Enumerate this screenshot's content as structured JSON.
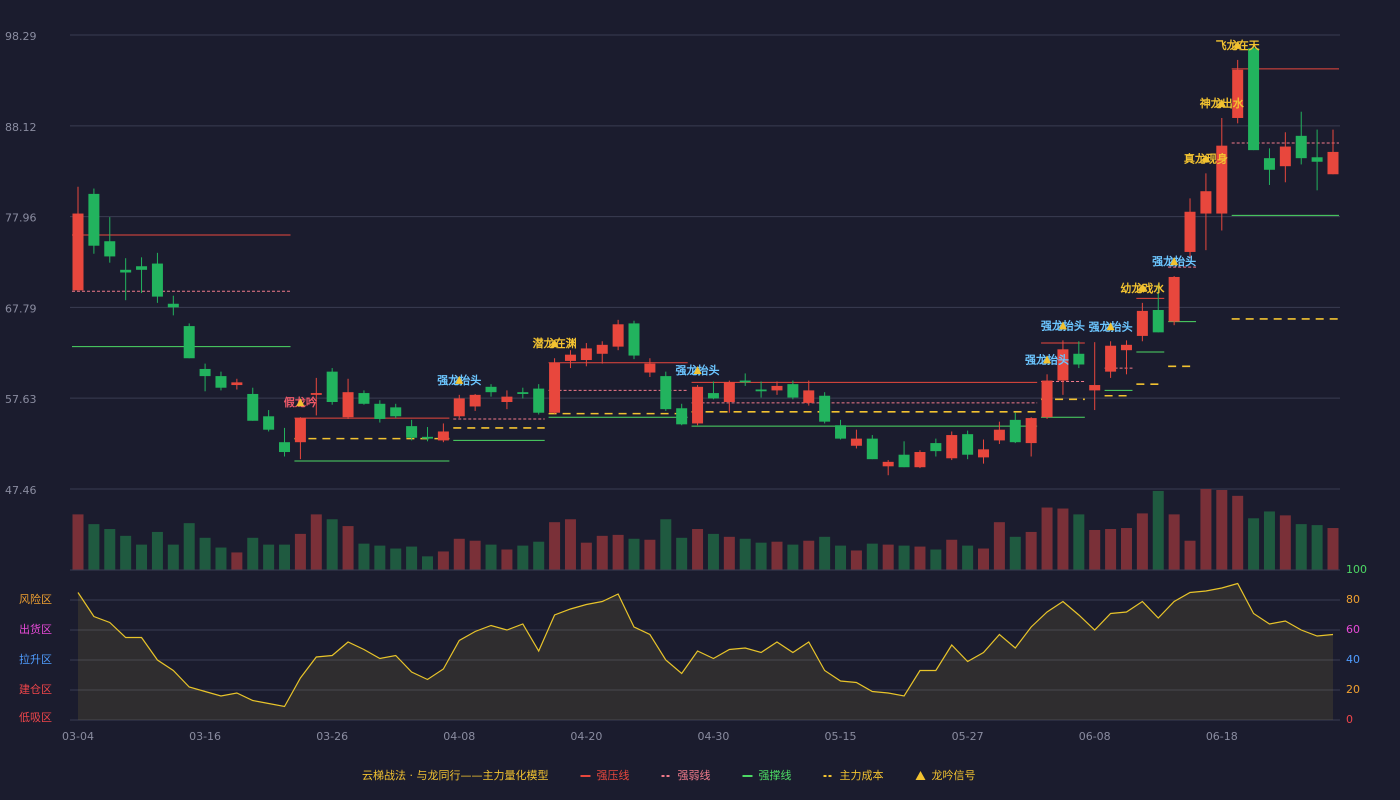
{
  "chart_data": [
    {
      "type": "candlestick",
      "categories": [
        "03-04",
        null,
        null,
        null,
        null,
        null,
        null,
        null,
        "03-16",
        null,
        null,
        null,
        null,
        null,
        null,
        null,
        "03-26",
        null,
        null,
        null,
        null,
        null,
        null,
        null,
        "04-08",
        null,
        null,
        null,
        null,
        null,
        null,
        null,
        "04-20",
        null,
        null,
        null,
        null,
        null,
        null,
        null,
        "04-30",
        null,
        null,
        null,
        null,
        null,
        null,
        null,
        "05-15",
        null,
        null,
        null,
        null,
        null,
        null,
        null,
        "05-27",
        null,
        null,
        null,
        null,
        null,
        null,
        null,
        "06-08",
        null,
        null,
        null,
        null,
        null,
        null,
        null,
        "06-18",
        null,
        null,
        null,
        null,
        null,
        null,
        null
      ],
      "open": [
        69.7,
        80.5,
        75.2,
        72.0,
        72.4,
        72.7,
        68.2,
        65.7,
        60.9,
        60.1,
        59.1,
        58.1,
        55.6,
        52.7,
        52.7,
        58.0,
        60.6,
        55.5,
        58.2,
        57.0,
        56.6,
        54.5,
        53.3,
        52.9,
        55.6,
        56.7,
        58.9,
        57.2,
        58.3,
        58.7,
        56.0,
        61.8,
        61.9,
        62.6,
        63.4,
        66.0,
        60.5,
        60.1,
        56.5,
        54.8,
        58.2,
        57.2,
        59.6,
        58.6,
        58.5,
        59.2,
        57.1,
        57.9,
        54.6,
        52.3,
        53.1,
        50.0,
        51.3,
        49.9,
        52.6,
        50.9,
        53.6,
        51.0,
        52.9,
        55.2,
        52.6,
        55.5,
        59.6,
        62.6,
        58.5,
        60.6,
        63.0,
        64.6,
        67.5,
        66.2,
        74.0,
        78.3,
        78.3,
        89.0,
        96.8,
        84.5,
        83.6,
        87.0,
        84.6,
        82.7
      ],
      "high": [
        81.3,
        81.1,
        77.9,
        73.3,
        73.4,
        73.9,
        69.1,
        66.0,
        61.5,
        60.6,
        59.8,
        58.8,
        56.3,
        54.3,
        55.5,
        59.9,
        61.0,
        59.8,
        58.5,
        57.4,
        57.0,
        55.2,
        54.4,
        54.8,
        58.0,
        58.1,
        59.2,
        58.5,
        58.8,
        59.2,
        62.1,
        63.0,
        63.8,
        64.0,
        66.4,
        66.3,
        62.1,
        60.6,
        57.0,
        59.1,
        59.5,
        59.6,
        60.4,
        59.5,
        59.5,
        59.6,
        59.6,
        58.3,
        55.2,
        54.1,
        53.5,
        50.7,
        52.8,
        51.8,
        53.1,
        53.9,
        54.0,
        53.0,
        55.0,
        56.0,
        55.5,
        60.3,
        64.1,
        64.0,
        63.9,
        64.0,
        64.1,
        68.3,
        70.4,
        71.3,
        80.0,
        82.8,
        89.0,
        95.5,
        97.0,
        85.6,
        87.4,
        89.7,
        87.7,
        87.7
      ],
      "low": [
        69.7,
        73.8,
        72.8,
        68.6,
        69.4,
        68.3,
        66.9,
        62.1,
        58.4,
        58.5,
        58.6,
        55.1,
        53.9,
        51.1,
        50.8,
        55.7,
        56.9,
        55.3,
        56.9,
        54.9,
        55.4,
        52.9,
        52.8,
        52.7,
        55.4,
        56.2,
        57.8,
        56.4,
        57.6,
        55.8,
        55.9,
        61.0,
        61.2,
        61.5,
        63.0,
        62.0,
        60.0,
        56.2,
        54.6,
        54.6,
        57.5,
        56.0,
        59.0,
        57.7,
        58.0,
        57.5,
        56.8,
        54.8,
        53.0,
        52.0,
        50.8,
        49.0,
        49.9,
        49.8,
        51.1,
        50.7,
        50.8,
        50.3,
        52.5,
        52.6,
        51.1,
        55.3,
        58.0,
        61.0,
        56.3,
        59.9,
        60.3,
        64.0,
        65.0,
        65.8,
        73.3,
        74.2,
        76.4,
        88.4,
        85.4,
        81.5,
        81.8,
        83.8,
        80.9,
        82.7
      ],
      "close": [
        78.3,
        74.7,
        73.5,
        71.7,
        72.0,
        69.0,
        67.8,
        62.1,
        60.1,
        58.8,
        59.4,
        55.1,
        54.1,
        51.6,
        55.4,
        58.2,
        57.2,
        58.3,
        57.0,
        55.3,
        55.6,
        53.2,
        53.1,
        53.9,
        57.6,
        58.0,
        58.3,
        57.8,
        58.1,
        56.0,
        61.6,
        62.5,
        63.2,
        63.6,
        65.9,
        62.4,
        61.5,
        56.4,
        54.7,
        58.9,
        57.6,
        59.4,
        59.4,
        58.4,
        59.0,
        57.7,
        58.5,
        55.0,
        53.1,
        53.1,
        50.8,
        50.5,
        49.9,
        51.6,
        51.7,
        53.5,
        51.3,
        51.9,
        54.1,
        52.7,
        55.4,
        59.6,
        63.1,
        61.4,
        59.1,
        63.5,
        63.6,
        67.4,
        65.0,
        71.2,
        78.5,
        80.8,
        85.9,
        94.4,
        85.4,
        83.2,
        85.8,
        84.5,
        84.1,
        85.2
      ],
      "up_color": "#e8473d",
      "down_color": "#22b35e",
      "ylim": [
        47.46,
        98.29
      ],
      "yticks": [
        47.46,
        57.63,
        67.79,
        77.96,
        88.12,
        98.29
      ],
      "lines": [
        {
          "name": "强压线",
          "color": "#e8473d",
          "dashed": false,
          "segments": [
            {
              "from": 0,
              "to": 13,
              "value": 75.9
            },
            {
              "from": 14,
              "to": 23,
              "value": 55.4
            },
            {
              "from": 30,
              "to": 38,
              "value": 61.6
            },
            {
              "from": 39,
              "to": 60,
              "value": 59.4
            },
            {
              "from": 61,
              "to": 63,
              "value": 63.8
            },
            {
              "from": 67,
              "to": 68,
              "value": 68.8
            },
            {
              "from": 73,
              "to": 79,
              "value": 94.5
            }
          ]
        },
        {
          "name": "强弱线",
          "color": "#f07a8a",
          "dashed": true,
          "segments": [
            {
              "from": 0,
              "to": 13,
              "value": 69.6
            },
            {
              "from": 24,
              "to": 29,
              "value": 55.3
            },
            {
              "from": 30,
              "to": 38,
              "value": 58.5
            },
            {
              "from": 39,
              "to": 60,
              "value": 57.1
            },
            {
              "from": 61,
              "to": 63,
              "value": 59.5
            },
            {
              "from": 65,
              "to": 66,
              "value": 61.0
            },
            {
              "from": 69,
              "to": 70,
              "value": 72.3
            },
            {
              "from": 73,
              "to": 79,
              "value": 86.2
            }
          ]
        },
        {
          "name": "强撑线",
          "color": "#4cd964",
          "dashed": false,
          "segments": [
            {
              "from": 0,
              "to": 13,
              "value": 63.4
            },
            {
              "from": 14,
              "to": 23,
              "value": 50.6
            },
            {
              "from": 24,
              "to": 29,
              "value": 52.9
            },
            {
              "from": 30,
              "to": 38,
              "value": 55.5
            },
            {
              "from": 39,
              "to": 60,
              "value": 54.5
            },
            {
              "from": 61,
              "to": 63,
              "value": 55.5
            },
            {
              "from": 65,
              "to": 66,
              "value": 58.5
            },
            {
              "from": 67,
              "to": 68,
              "value": 62.8
            },
            {
              "from": 69,
              "to": 70,
              "value": 66.2
            },
            {
              "from": 73,
              "to": 79,
              "value": 78.1
            }
          ]
        },
        {
          "name": "主力成本",
          "color": "#f2c230",
          "dashed": true,
          "segments": [
            {
              "from": 14,
              "to": 23,
              "value": 53.1
            },
            {
              "from": 24,
              "to": 29,
              "value": 54.3
            },
            {
              "from": 30,
              "to": 38,
              "value": 55.9
            },
            {
              "from": 39,
              "to": 60,
              "value": 56.1
            },
            {
              "from": 61,
              "to": 63,
              "value": 57.5
            },
            {
              "from": 65,
              "to": 66,
              "value": 57.9
            },
            {
              "from": 67,
              "to": 68,
              "value": 59.2
            },
            {
              "from": 69,
              "to": 70,
              "value": 61.2
            },
            {
              "from": 73,
              "to": 79,
              "value": 66.5
            }
          ]
        }
      ],
      "signals": {
        "name": "龙吟信号",
        "color": "#f2c230",
        "items": [
          {
            "index": 14,
            "text": "假龙吟",
            "color": "#f05a6a"
          },
          {
            "index": 24,
            "text": "强龙抬头",
            "color": "#6cc6ff"
          },
          {
            "index": 30,
            "text": "潜龙在渊",
            "color": "#f2c230"
          },
          {
            "index": 39,
            "text": "强龙抬头",
            "color": "#6cc6ff"
          },
          {
            "index": 61,
            "text": "强龙抬头",
            "color": "#6cc6ff"
          },
          {
            "index": 62,
            "text": "强龙抬头",
            "color": "#6cc6ff"
          },
          {
            "index": 65,
            "text": "强龙抬头",
            "color": "#6cc6ff"
          },
          {
            "index": 67,
            "text": "幼龙戏水",
            "color": "#f2c230"
          },
          {
            "index": 69,
            "text": "强龙抬头",
            "color": "#6cc6ff"
          },
          {
            "index": 71,
            "text": "真龙现身",
            "color": "#f2c230"
          },
          {
            "index": 72,
            "text": "神龙出水",
            "color": "#f2c230"
          },
          {
            "index": 73,
            "text": "飞龙在天",
            "color": "#f2c230"
          }
        ]
      }
    },
    {
      "type": "bar",
      "values": [
        57,
        47,
        42,
        35,
        26,
        39,
        26,
        48,
        33,
        23,
        18,
        33,
        26,
        26,
        37,
        57,
        52,
        45,
        27,
        25,
        22,
        24,
        14,
        19,
        32,
        30,
        26,
        21,
        25,
        29,
        49,
        52,
        28,
        35,
        36,
        32,
        31,
        52,
        33,
        42,
        37,
        34,
        32,
        28,
        29,
        26,
        30,
        34,
        25,
        20,
        27,
        26,
        25,
        24,
        21,
        31,
        25,
        22,
        49,
        34,
        39,
        64,
        63,
        57,
        41,
        42,
        43,
        58,
        81,
        57,
        30,
        83,
        82,
        76,
        53,
        60,
        56,
        47,
        46,
        43
      ]
    },
    {
      "type": "line",
      "color": "#e8c42a",
      "values": [
        85,
        69,
        65,
        55,
        55,
        40,
        33,
        22,
        19,
        16,
        18,
        13,
        11,
        9,
        28,
        42,
        43,
        52,
        47,
        41,
        43,
        32,
        27,
        34,
        53,
        59,
        63,
        60,
        64,
        46,
        70,
        74,
        77,
        79,
        84,
        62,
        57,
        40,
        31,
        46,
        41,
        47,
        48,
        45,
        52,
        45,
        52,
        33,
        26,
        25,
        19,
        18,
        16,
        33,
        33,
        50,
        39,
        45,
        57,
        48,
        62,
        72,
        79,
        70,
        60,
        71,
        72,
        79,
        68,
        79,
        85,
        86,
        88,
        91,
        71,
        64,
        66,
        60,
        56,
        57
      ],
      "ylim": [
        0,
        100
      ],
      "yticks": [
        0,
        20,
        40,
        60,
        80,
        100
      ],
      "tick_colors": [
        "#f0454a",
        "#f0a030",
        "#4f9cff",
        "#e84ad8",
        "#f0a030",
        "#4cd964"
      ],
      "zones": [
        {
          "value": 80,
          "label": "风险区",
          "color": "#f0a030"
        },
        {
          "value": 60,
          "label": "出货区",
          "color": "#e84ad8"
        },
        {
          "value": 40,
          "label": "拉升区",
          "color": "#4f9cff"
        },
        {
          "value": 20,
          "label": "建仓区",
          "color": "#f0454a"
        },
        {
          "value": 0,
          "label": "低吸区",
          "color": "#f0454a"
        }
      ]
    }
  ],
  "legend_title": "云梯战法 · 与龙同行——主力量化模型"
}
